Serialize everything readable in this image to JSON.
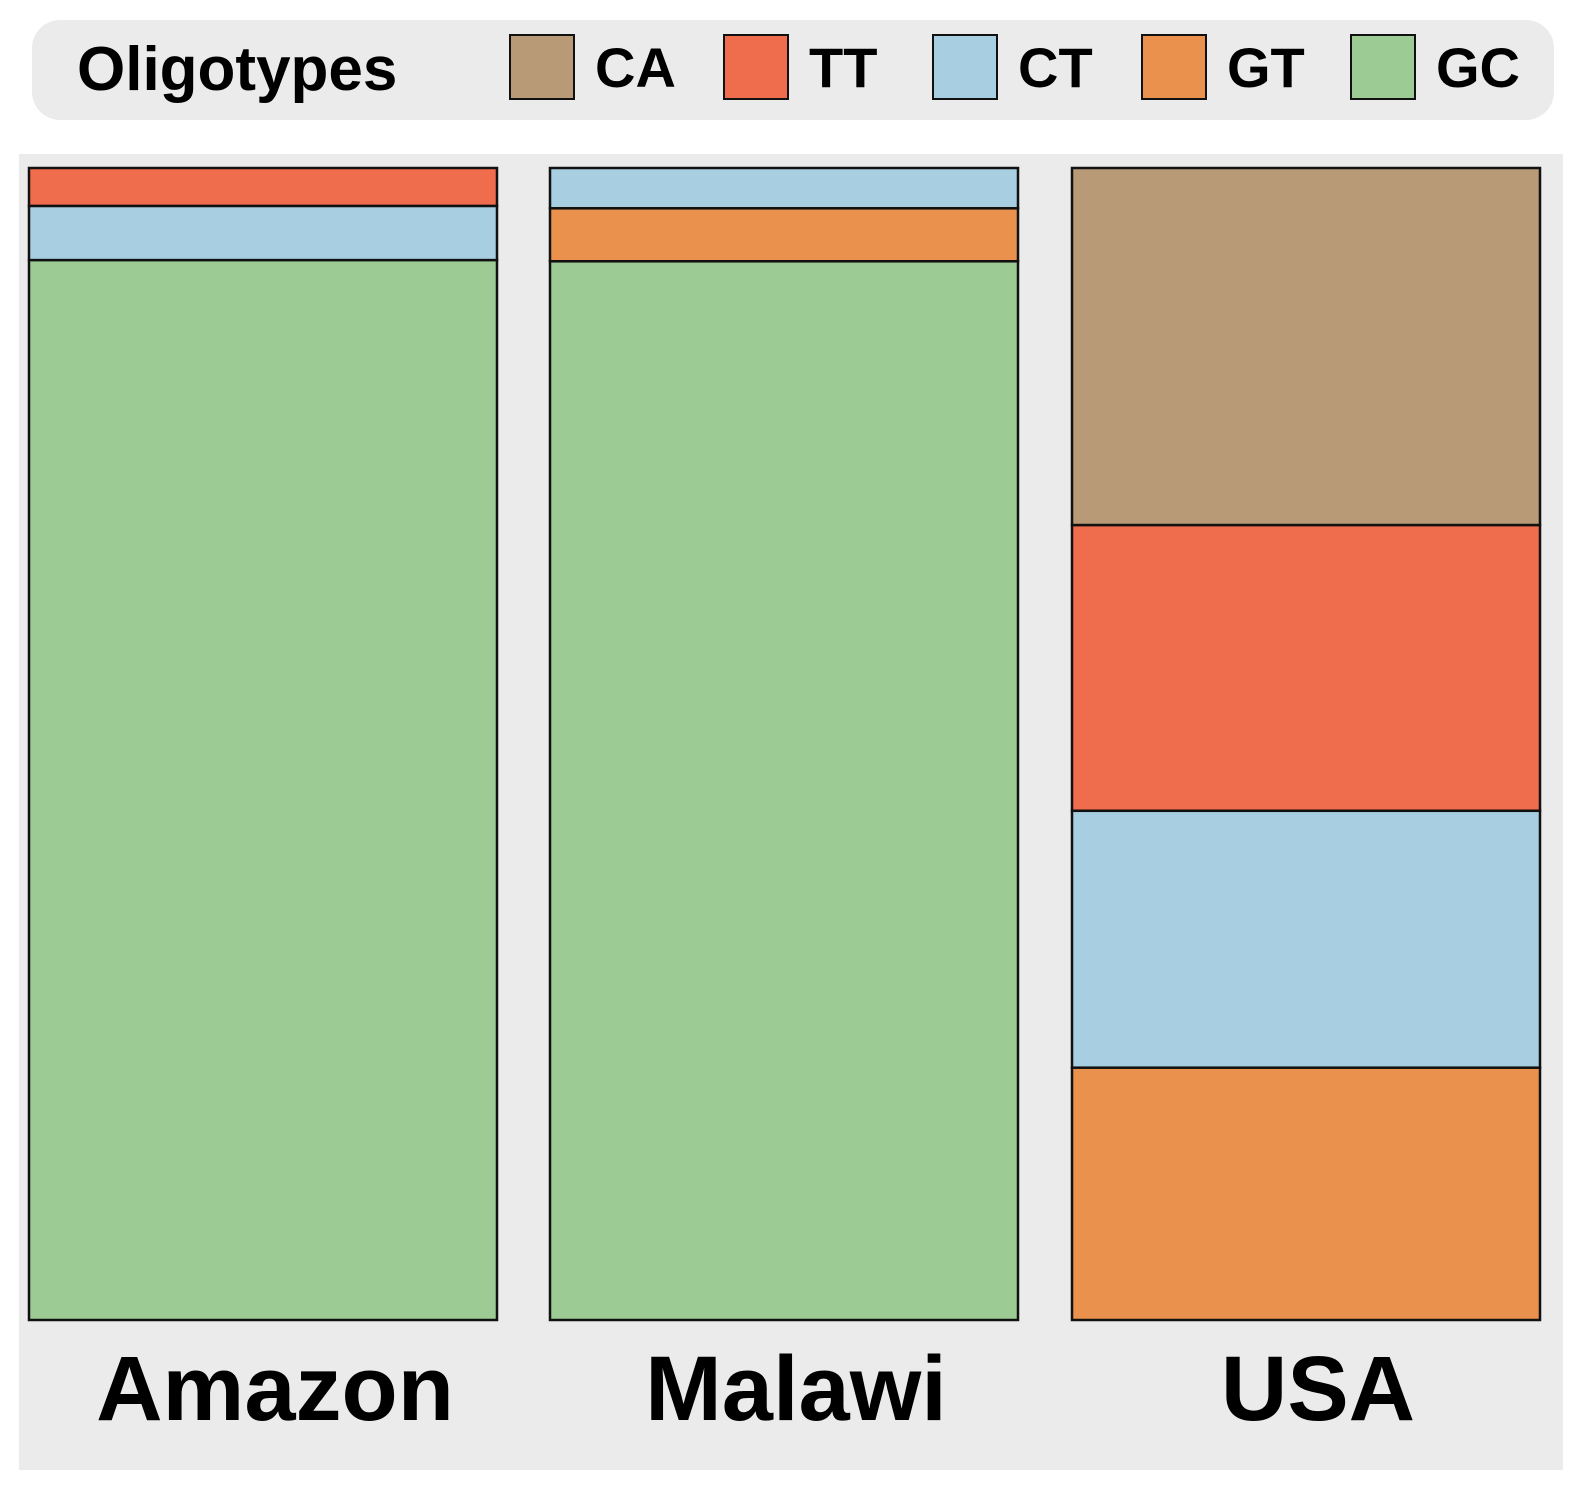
{
  "legend": {
    "title": "Oligotypes",
    "items": [
      {
        "label": "CA",
        "color": "#b89a77"
      },
      {
        "label": "TT",
        "color": "#ef6c4d"
      },
      {
        "label": "CT",
        "color": "#a7cee1"
      },
      {
        "label": "GT",
        "color": "#ea914e"
      },
      {
        "label": "GC",
        "color": "#9ccc94"
      }
    ]
  },
  "chart_data": {
    "type": "bar",
    "stacked": true,
    "normalized": true,
    "categories": [
      "Amazon",
      "Malawi",
      "USA"
    ],
    "series": [
      {
        "name": "CA",
        "color": "#b89a77",
        "values": [
          0,
          0,
          0.31
        ]
      },
      {
        "name": "TT",
        "color": "#ef6c4d",
        "values": [
          0.033,
          0,
          0.248
        ]
      },
      {
        "name": "CT",
        "color": "#a7cee1",
        "values": [
          0.047,
          0.035,
          0.223
        ]
      },
      {
        "name": "GT",
        "color": "#ea914e",
        "values": [
          0,
          0.046,
          0.219
        ]
      },
      {
        "name": "GC",
        "color": "#9ccc94",
        "values": [
          0.92,
          0.919,
          0
        ]
      }
    ],
    "ylim": [
      0,
      1
    ],
    "grid": false,
    "legend_position": "top"
  }
}
